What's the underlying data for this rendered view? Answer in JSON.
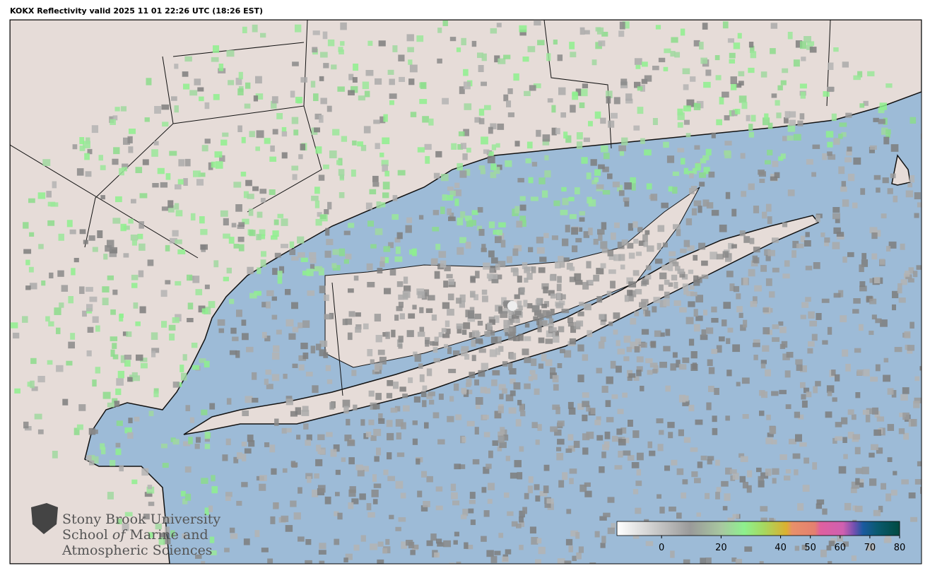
{
  "title": "KOKX Reflectivity valid 2025 11 01 22:26 UTC (18:26 EST)",
  "logo": {
    "line1": "Stony Brook University",
    "line2": {
      "before": "School ",
      "italic": "of",
      "after": " Marine and"
    },
    "line3": "Atmospheric Sciences"
  },
  "colorbar": {
    "range": [
      -15,
      80
    ],
    "ticks": [
      0,
      20,
      40,
      50,
      60,
      70,
      80
    ]
  }
}
